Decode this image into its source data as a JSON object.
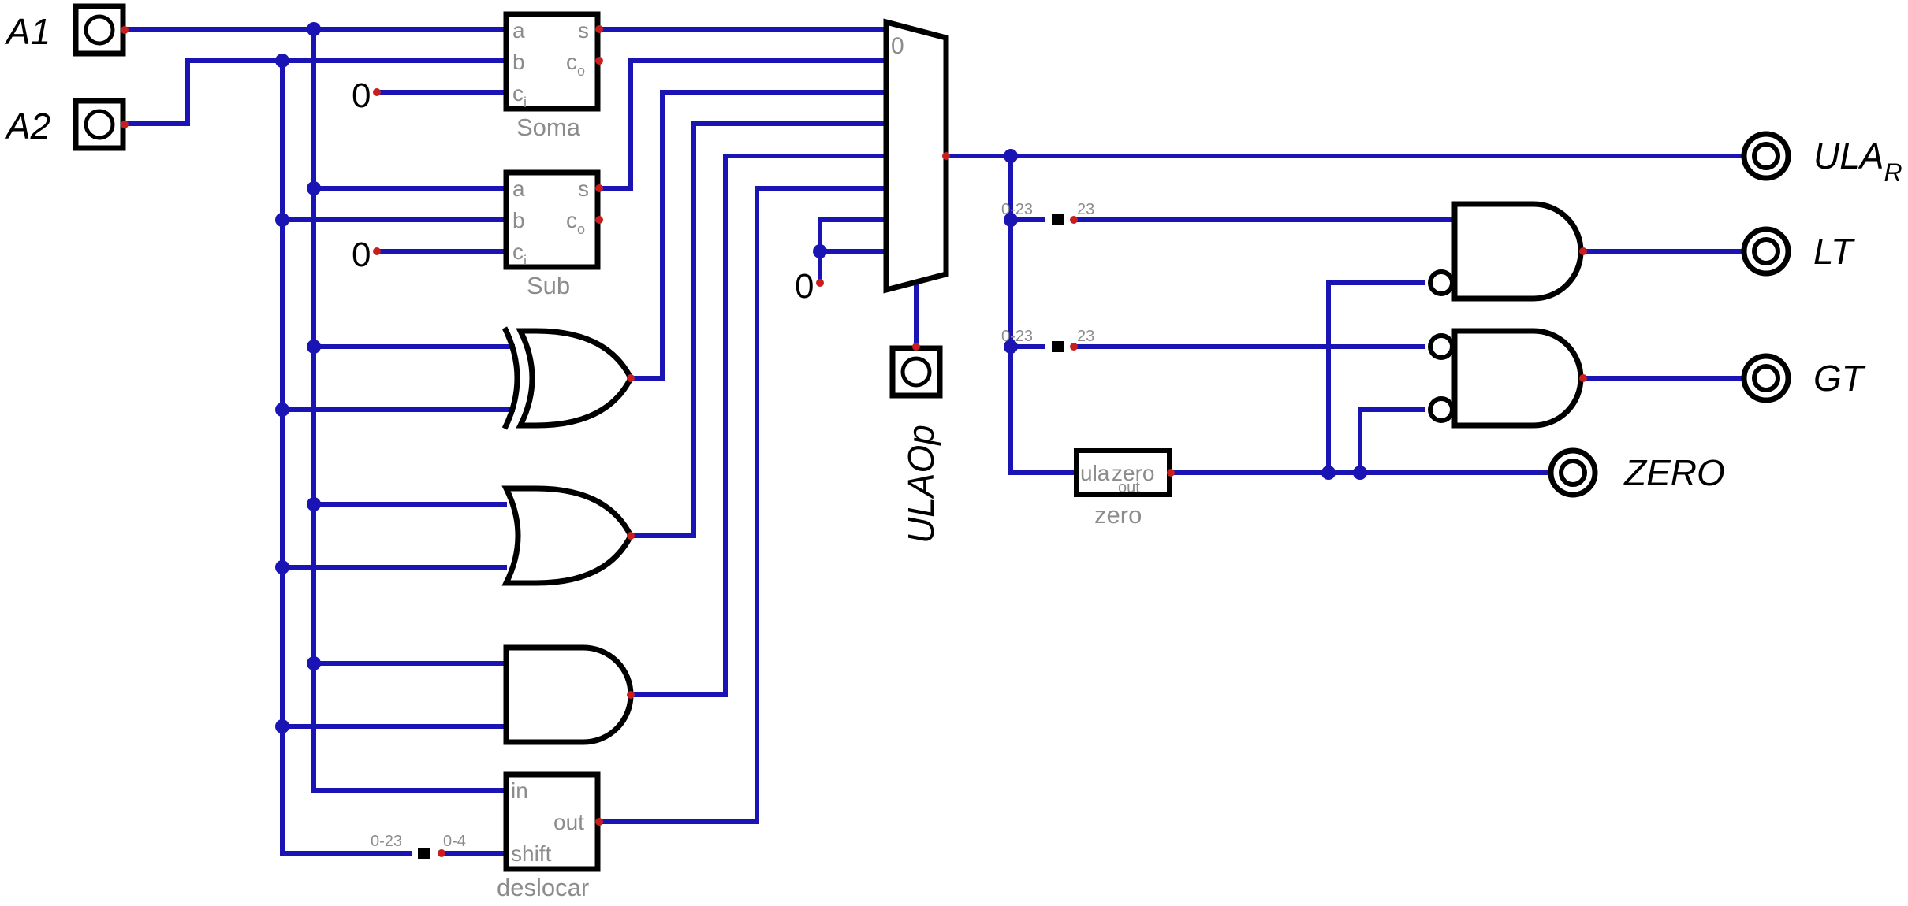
{
  "inputs": {
    "a1": "A1",
    "a2": "A2",
    "ulaop": "ULAOp"
  },
  "outputs": {
    "ular_main": "ULA",
    "ular_sub": "R",
    "lt": "LT",
    "gt": "GT",
    "zero": "ZERO"
  },
  "constants": {
    "soma_ci": "0",
    "sub_ci": "0",
    "mux_const": "0"
  },
  "soma": {
    "name": "Soma",
    "pin_a": "a",
    "pin_b": "b",
    "pin_ci": "c",
    "pin_ci_sub": "i",
    "pin_s": "s",
    "pin_co": "c",
    "pin_co_sub": "o"
  },
  "sub": {
    "name": "Sub",
    "pin_a": "a",
    "pin_b": "b",
    "pin_ci": "c",
    "pin_ci_sub": "i",
    "pin_s": "s",
    "pin_co": "c",
    "pin_co_sub": "o"
  },
  "shifter": {
    "name": "deslocar",
    "pin_in": "in",
    "pin_shift": "shift",
    "pin_out": "out"
  },
  "zero_block": {
    "name": "zero",
    "pin_in": "ula",
    "pin_out": "zero",
    "pin_out_sub": "out",
    "fill": "#fdf7b5"
  },
  "mux": {
    "select_label": "0"
  },
  "splitters": {
    "top_left": "0-23",
    "top_right": "23",
    "mid_left": "0-23",
    "mid_right": "23",
    "shift_left": "0-23",
    "shift_right": "0-4"
  },
  "colors": {
    "wire": "#1a14b4",
    "port": "#c81e1e",
    "junction": "#1a14b4"
  }
}
